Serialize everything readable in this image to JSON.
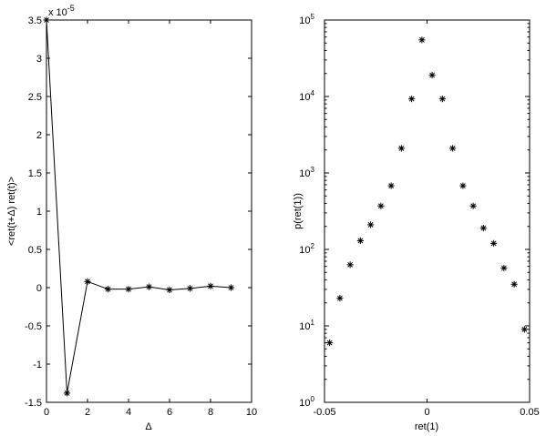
{
  "chart_data": [
    {
      "type": "line",
      "marker": "asterisk",
      "x": [
        0,
        1,
        2,
        3,
        4,
        5,
        6,
        7,
        8,
        9
      ],
      "y": [
        3.5,
        -1.38,
        0.08,
        -0.02,
        -0.02,
        0.01,
        -0.03,
        -0.01,
        0.02,
        0.0
      ],
      "exponent_label": "x 10",
      "exponent_value": "-5",
      "xlabel": "Δ",
      "ylabel": "<ret(t+Δ) ret(t)>",
      "xlim": [
        0,
        10
      ],
      "ylim": [
        -1.5,
        3.5
      ],
      "xticks": [
        0,
        2,
        4,
        6,
        8,
        10
      ],
      "yticks": [
        -1.5,
        -1,
        -0.5,
        0,
        0.5,
        1,
        1.5,
        2,
        2.5,
        3,
        3.5
      ],
      "xtick_labels": [
        "0",
        "2",
        "4",
        "6",
        "8",
        "10"
      ],
      "ytick_labels": [
        "-1.5",
        "-1",
        "-0.5",
        "0",
        "0.5",
        "1",
        "1.5",
        "2",
        "2.5",
        "3",
        "3.5"
      ],
      "grid": false
    },
    {
      "type": "scatter",
      "marker": "asterisk",
      "yscale": "log",
      "x": [
        -0.0475,
        -0.0425,
        -0.0375,
        -0.0325,
        -0.0275,
        -0.0225,
        -0.0175,
        -0.0125,
        -0.0075,
        -0.0025,
        0.0025,
        0.0075,
        0.0125,
        0.0175,
        0.0225,
        0.0275,
        0.0325,
        0.0375,
        0.0425,
        0.0475
      ],
      "y": [
        6,
        23,
        63,
        130,
        210,
        370,
        680,
        2100,
        9300,
        55000,
        19000,
        9300,
        2100,
        680,
        370,
        190,
        120,
        57,
        35,
        9
      ],
      "xlabel": "ret(1)",
      "ylabel": "p(ret(1))",
      "xlim": [
        -0.05,
        0.05
      ],
      "ylim": [
        1,
        100000
      ],
      "xticks": [
        -0.05,
        0,
        0.05
      ],
      "xtick_labels": [
        "-0.05",
        "0",
        "0.05"
      ],
      "ytick_base": "10",
      "ytick_exponents": [
        "0",
        "1",
        "2",
        "3",
        "4",
        "5"
      ],
      "grid": false
    }
  ]
}
